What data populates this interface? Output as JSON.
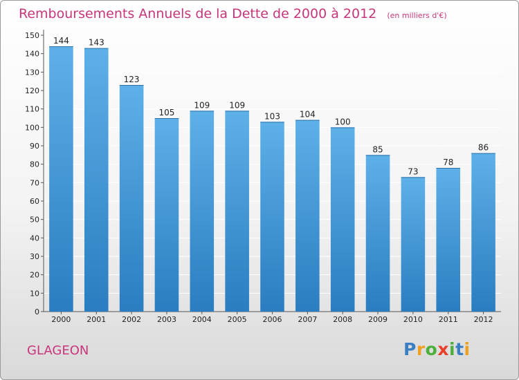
{
  "chart_data": {
    "type": "bar",
    "title": "Remboursements Annuels de la Dette de 2000 à 2012",
    "subtitle": "(en milliers d'€)",
    "categories": [
      "2000",
      "2001",
      "2002",
      "2003",
      "2004",
      "2005",
      "2006",
      "2007",
      "2008",
      "2009",
      "2010",
      "2011",
      "2012"
    ],
    "values": [
      144,
      143,
      123,
      105,
      109,
      109,
      103,
      104,
      100,
      85,
      73,
      78,
      86
    ],
    "ylim": [
      0,
      150
    ],
    "yticks": [
      0,
      10,
      20,
      30,
      40,
      50,
      60,
      70,
      80,
      90,
      100,
      110,
      120,
      130,
      140,
      150
    ],
    "grid": true,
    "bar_color_top": "#5eb0e8",
    "bar_color_bottom": "#2a7dc0"
  },
  "footer": {
    "commune": "GLAGEON",
    "logo_letters": [
      {
        "ch": "P",
        "color": "#3a7fc4"
      },
      {
        "ch": "r",
        "color": "#f0a020"
      },
      {
        "ch": "o",
        "color": "#4caf3c"
      },
      {
        "ch": "x",
        "color": "#e8402a"
      },
      {
        "ch": "i",
        "color": "#4caf3c"
      },
      {
        "ch": "t",
        "color": "#3a7fc4"
      },
      {
        "ch": "i",
        "color": "#f0a020"
      }
    ]
  },
  "colors": {
    "accent": "#c8357a",
    "grid": "#ffffff"
  }
}
